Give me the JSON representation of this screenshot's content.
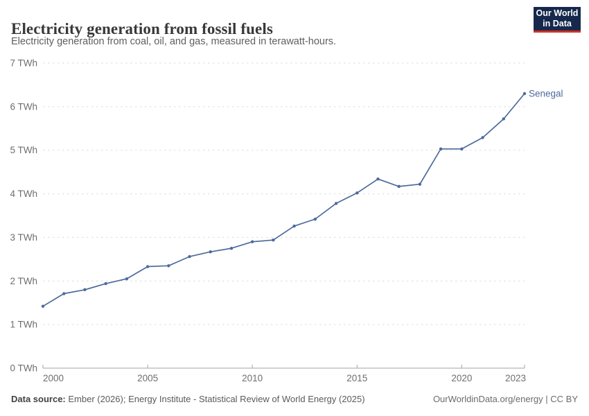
{
  "header": {
    "title": "Electricity generation from fossil fuels",
    "subtitle": "Electricity generation from coal, oil, and gas, measured in terawatt-hours.",
    "logo": {
      "line1": "Our World",
      "line2": "in Data"
    }
  },
  "chart_data": {
    "type": "line",
    "title": "Electricity generation from fossil fuels",
    "ylabel": "TWh",
    "xlabel": "",
    "ylim": [
      0,
      7
    ],
    "ytick_values": [
      0,
      1,
      2,
      3,
      4,
      5,
      6,
      7
    ],
    "ytick_format": "{v} TWh",
    "xticks": [
      2000,
      2005,
      2010,
      2015,
      2020,
      2023
    ],
    "grid": "horizontal-dashed",
    "legend_position": "end-of-line-label",
    "x": [
      2000,
      2001,
      2002,
      2003,
      2004,
      2005,
      2006,
      2007,
      2008,
      2009,
      2010,
      2011,
      2012,
      2013,
      2014,
      2015,
      2016,
      2017,
      2018,
      2019,
      2020,
      2021,
      2022,
      2023
    ],
    "series": [
      {
        "name": "Senegal",
        "color": "#4c6a9c",
        "values": [
          1.42,
          1.71,
          1.8,
          1.94,
          2.05,
          2.33,
          2.35,
          2.56,
          2.67,
          2.75,
          2.9,
          2.94,
          3.26,
          3.42,
          3.78,
          4.02,
          4.34,
          4.17,
          4.22,
          5.03,
          5.03,
          5.29,
          5.72,
          6.3
        ]
      }
    ]
  },
  "footer": {
    "source_label": "Data source:",
    "source_text": " Ember (2026); Energy Institute - Statistical Review of World Energy (2025)",
    "right_text": "OurWorldinData.org/energy | CC BY"
  },
  "colors": {
    "line": "#4c6a9c",
    "grid": "#dcdcdc",
    "axis": "#a3a3a3",
    "tick_text": "#6e6e6e",
    "logo_bg": "#16294c",
    "logo_red": "#cf3127"
  }
}
